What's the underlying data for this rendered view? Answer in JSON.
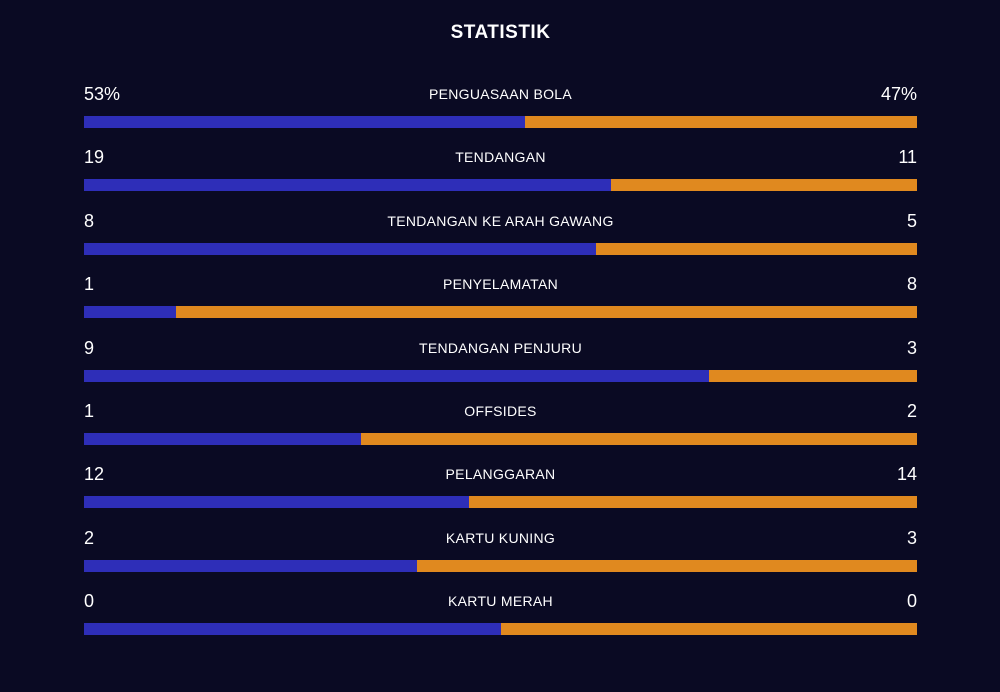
{
  "title": "STATISTIK",
  "colors": {
    "background": "#0a0a23",
    "home_bar": "#2e2eb8",
    "away_bar": "#e0891f"
  },
  "stats": [
    {
      "label": "PENGUASAAN BOLA",
      "home": "53%",
      "away": "47%",
      "home_share": 0.53
    },
    {
      "label": "TENDANGAN",
      "home": "19",
      "away": "11",
      "home_share": 0.633
    },
    {
      "label": "TENDANGAN KE ARAH GAWANG",
      "home": "8",
      "away": "5",
      "home_share": 0.615
    },
    {
      "label": "PENYELAMATAN",
      "home": "1",
      "away": "8",
      "home_share": 0.111
    },
    {
      "label": "TENDANGAN PENJURU",
      "home": "9",
      "away": "3",
      "home_share": 0.75
    },
    {
      "label": "OFFSIDES",
      "home": "1",
      "away": "2",
      "home_share": 0.333
    },
    {
      "label": "PELANGGARAN",
      "home": "12",
      "away": "14",
      "home_share": 0.462
    },
    {
      "label": "KARTU KUNING",
      "home": "2",
      "away": "3",
      "home_share": 0.4
    },
    {
      "label": "KARTU MERAH",
      "home": "0",
      "away": "0",
      "home_share": 0.5
    }
  ]
}
